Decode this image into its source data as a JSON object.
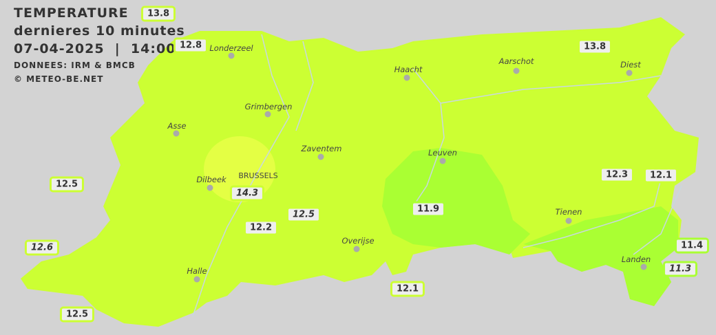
{
  "header": {
    "title": "TEMPERATURE",
    "subtitle": "dernieres 10 minutes",
    "datetime": "07-04-2025  |  14:00",
    "source": "DONNEES: IRM & BMCB",
    "copyright": "© METEO-BE.NET"
  },
  "colors": {
    "background": "#d3d3d3",
    "zone_12": "#ccff33",
    "zone_11": "#aaff33",
    "zone_14": "#e4ff44"
  },
  "cities": [
    {
      "name": "Londerzeel"
    },
    {
      "name": "Haacht"
    },
    {
      "name": "Aarschot"
    },
    {
      "name": "Diest"
    },
    {
      "name": "Grimbergen"
    },
    {
      "name": "Asse"
    },
    {
      "name": "Zaventem"
    },
    {
      "name": "Leuven"
    },
    {
      "name": "Dilbeek"
    },
    {
      "name": "BRUSSELS"
    },
    {
      "name": "Tienen"
    },
    {
      "name": "Overijse"
    },
    {
      "name": "Halle"
    },
    {
      "name": "Landen"
    }
  ],
  "stations": [
    {
      "value": "13.8"
    },
    {
      "value": "12.8"
    },
    {
      "value": "13.8"
    },
    {
      "value": "12.5"
    },
    {
      "value": "14.3"
    },
    {
      "value": "12.5"
    },
    {
      "value": "12.2"
    },
    {
      "value": "11.9"
    },
    {
      "value": "12.3"
    },
    {
      "value": "12.1"
    },
    {
      "value": "12.6"
    },
    {
      "value": "11.4"
    },
    {
      "value": "11.3"
    },
    {
      "value": "12.1"
    },
    {
      "value": "12.5"
    }
  ]
}
